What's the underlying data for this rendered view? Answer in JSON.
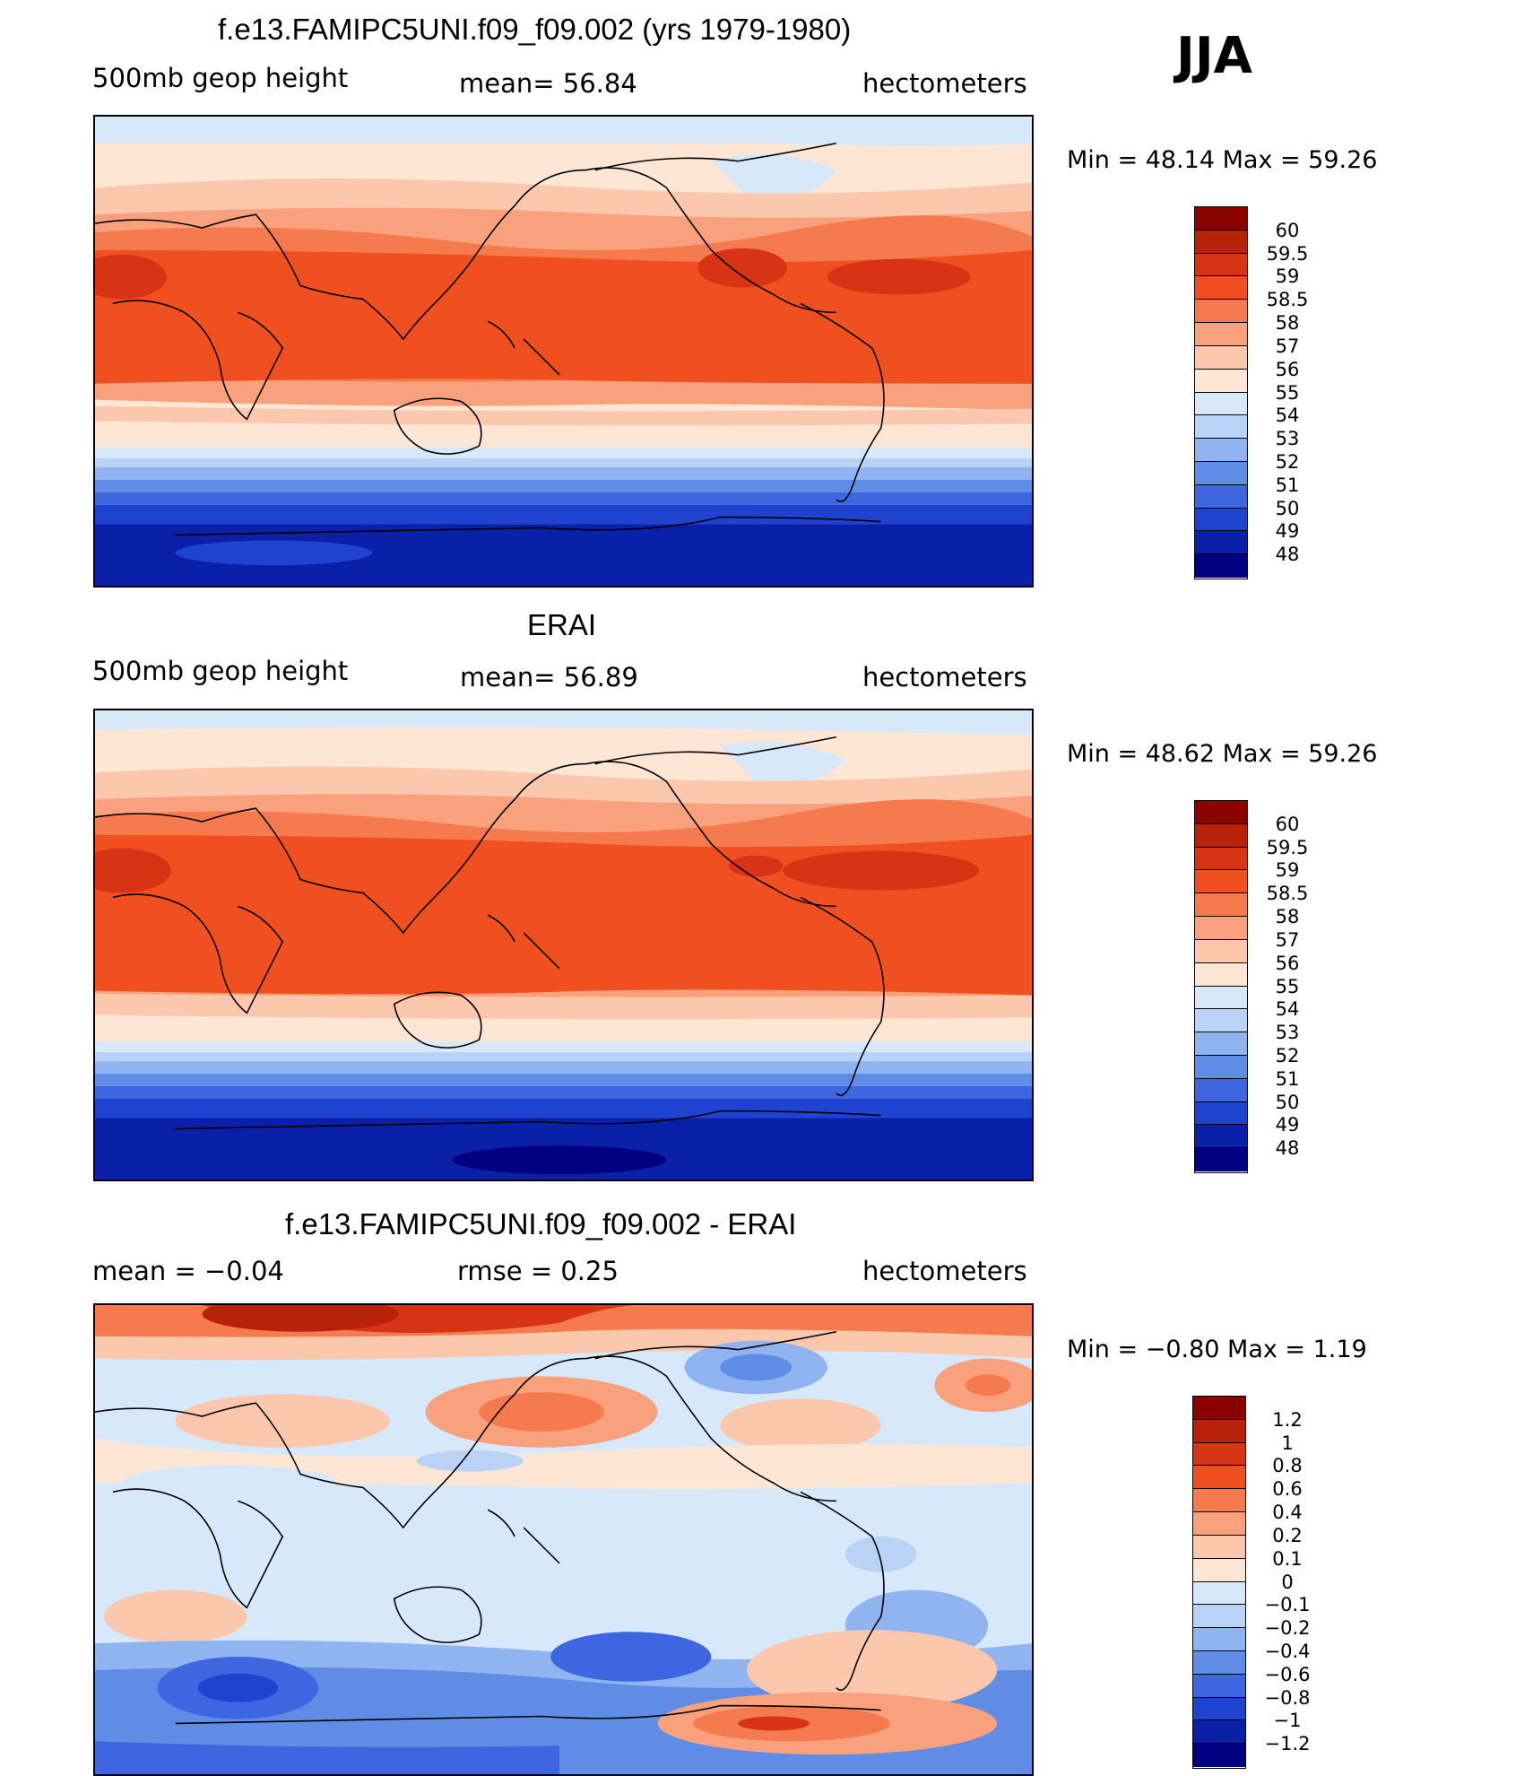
{
  "season": "JJA",
  "panels": [
    {
      "title": "f.e13.FAMIPC5UNI.f09_f09.002 (yrs 1979-1980)",
      "left_label": "500mb  geop  height",
      "mid_label": "mean=   56.84",
      "right_label": "hectometers",
      "minmax": "Min  =    48.14  Max  =    59.26",
      "colorbar": {
        "labels": [
          "60",
          "59.5",
          "59",
          "58.5",
          "58",
          "57",
          "56",
          "55",
          "54",
          "53",
          "52",
          "51",
          "50",
          "49",
          "48"
        ],
        "colors": [
          "#8b0000",
          "#b82209",
          "#d63414",
          "#f0501f",
          "#f57a4e",
          "#f9a07c",
          "#fcc8ad",
          "#fde6d4",
          "#d6e8fa",
          "#b9d2f6",
          "#8fb4f0",
          "#5f8de6",
          "#3d66e0",
          "#1f42d0",
          "#0a20a8",
          "#000080"
        ]
      }
    },
    {
      "title": "ERAI",
      "left_label": "500mb  geop  height",
      "mid_label": "mean=   56.89",
      "right_label": "hectometers",
      "minmax": "Min  =    48.62  Max  =    59.26",
      "colorbar": {
        "labels": [
          "60",
          "59.5",
          "59",
          "58.5",
          "58",
          "57",
          "56",
          "55",
          "54",
          "53",
          "52",
          "51",
          "50",
          "49",
          "48"
        ],
        "colors": [
          "#8b0000",
          "#b82209",
          "#d63414",
          "#f0501f",
          "#f57a4e",
          "#f9a07c",
          "#fcc8ad",
          "#fde6d4",
          "#d6e8fa",
          "#b9d2f6",
          "#8fb4f0",
          "#5f8de6",
          "#3d66e0",
          "#1f42d0",
          "#0a20a8",
          "#000080"
        ]
      }
    },
    {
      "title": "f.e13.FAMIPC5UNI.f09_f09.002 - ERAI",
      "left_label": "mean  =    −0.04",
      "mid_label": "rmse  =     0.25",
      "right_label": "hectometers",
      "minmax": "Min  =   −0.80  Max  =     1.19",
      "colorbar": {
        "labels": [
          "1.2",
          "1",
          "0.8",
          "0.6",
          "0.4",
          "0.2",
          "0.1",
          "0",
          "−0.1",
          "−0.2",
          "−0.4",
          "−0.6",
          "−0.8",
          "−1",
          "−1.2"
        ],
        "colors": [
          "#8b0000",
          "#b82209",
          "#d63414",
          "#f0501f",
          "#f57a4e",
          "#f9a07c",
          "#fcc8ad",
          "#fde6d4",
          "#d6e8fa",
          "#b9d2f6",
          "#8fb4f0",
          "#5f8de6",
          "#3d66e0",
          "#1f42d0",
          "#0a20a8",
          "#000080"
        ]
      }
    }
  ]
}
